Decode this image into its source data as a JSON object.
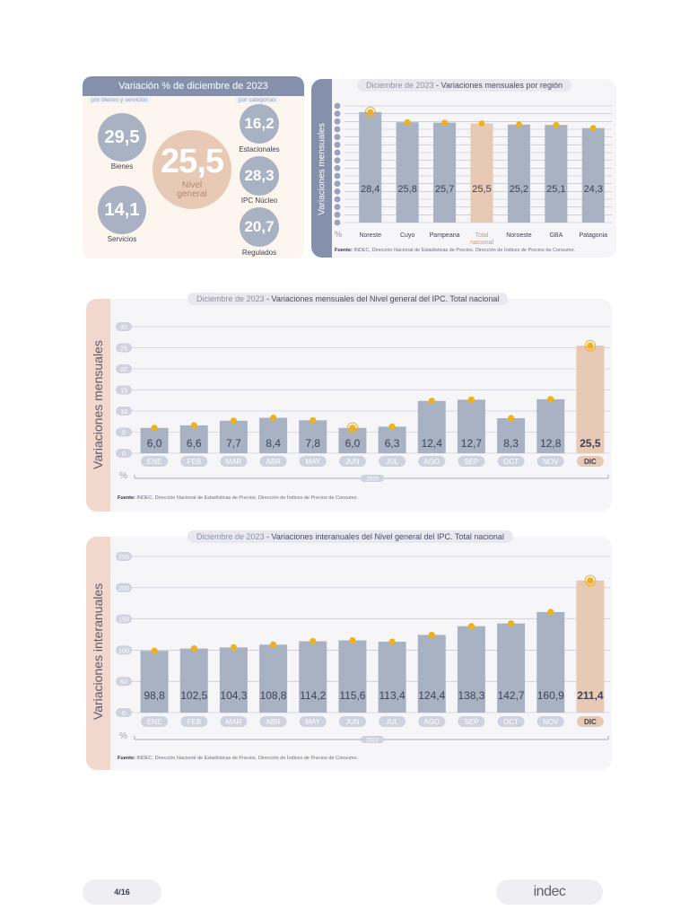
{
  "summary": {
    "header": "Variación % de diciembre de 2023",
    "left_sub": "por bienes y servicios",
    "right_sub": "por categorías",
    "bienes": {
      "value": "29,5",
      "label": "Bienes"
    },
    "servicios": {
      "value": "14,1",
      "label": "Servicios"
    },
    "nivel": {
      "value": "25,5",
      "label": "Nivel general"
    },
    "estacionales": {
      "value": "16,2",
      "label": "Estacionales"
    },
    "nucleo": {
      "value": "28,3",
      "label": "IPC Núcleo"
    },
    "regulados": {
      "value": "20,7",
      "label": "Regulados"
    }
  },
  "source_text": {
    "bold": "Fuente:",
    "rest": " INDEC, Dirección Nacional de Estadísticas de Precios. Dirección de Índices de Precios de Consumo."
  },
  "colors": {
    "bar": "#a8b2c3",
    "highlight": "#e7c9b5",
    "dot": "#f0b21b",
    "title_bar": "#8590ad"
  },
  "chart_data": [
    {
      "type": "bar",
      "title_prefix": "Diciembre de 2023",
      "title": " - Variaciones mensuales por región",
      "ylabel": "Variaciones  mensuales",
      "unit": "%",
      "categories": [
        "Noreste",
        "Cuyo",
        "Pampeana",
        "Total nacional",
        "Noroeste",
        "GBA",
        "Patagonia"
      ],
      "values": [
        28.4,
        25.8,
        25.7,
        25.5,
        25.2,
        25.1,
        24.3
      ],
      "labels": [
        "28,4",
        "25,8",
        "25,7",
        "25,5",
        "25,2",
        "25,1",
        "24,3"
      ],
      "highlight_index": 3,
      "ylim": [
        0,
        30
      ],
      "grid": true
    },
    {
      "type": "bar",
      "title_prefix": "Diciembre de 2023",
      "title": " - Variaciones mensuales del Nivel general del IPC. Total nacional",
      "ylabel": "Variaciones mensuales",
      "unit": "%",
      "year_label": "2023",
      "categories": [
        "ENE",
        "FEB",
        "MAR",
        "ABR",
        "MAY",
        "JUN",
        "JUL",
        "AGO",
        "SEP",
        "OCT",
        "NOV",
        "DIC"
      ],
      "values": [
        6.0,
        6.6,
        7.7,
        8.4,
        7.8,
        6.0,
        6.3,
        12.4,
        12.7,
        8.3,
        12.8,
        25.5
      ],
      "labels": [
        "6,0",
        "6,6",
        "7,7",
        "8,4",
        "7,8",
        "6,0",
        "6,3",
        "12,4",
        "12,7",
        "8,3",
        "12,8",
        "25,5"
      ],
      "ticks": [
        0,
        5,
        10,
        15,
        20,
        25,
        30
      ],
      "highlight_index": 11,
      "ylim": [
        0,
        30
      ],
      "grid": true
    },
    {
      "type": "bar",
      "title_prefix": "Diciembre de 2023",
      "title": " - Variaciones interanuales del Nivel general del IPC. Total nacional",
      "ylabel": "Variaciones interanuales",
      "unit": "%",
      "year_label": "2023",
      "categories": [
        "ENE",
        "FEB",
        "MAR",
        "ABR",
        "MAY",
        "JUN",
        "JUL",
        "AGO",
        "SEP",
        "OCT",
        "NOV",
        "DIC"
      ],
      "values": [
        98.8,
        102.5,
        104.3,
        108.8,
        114.2,
        115.6,
        113.4,
        124.4,
        138.3,
        142.7,
        160.9,
        211.4
      ],
      "labels": [
        "98,8",
        "102,5",
        "104,3",
        "108,8",
        "114,2",
        "115,6",
        "113,4",
        "124,4",
        "138,3",
        "142,7",
        "160,9",
        "211,4"
      ],
      "ticks": [
        0,
        50,
        100,
        150,
        200,
        250
      ],
      "highlight_index": 11,
      "ylim": [
        0,
        250
      ],
      "grid": true
    }
  ],
  "footer": {
    "page": "4/16",
    "logo": "indec"
  }
}
